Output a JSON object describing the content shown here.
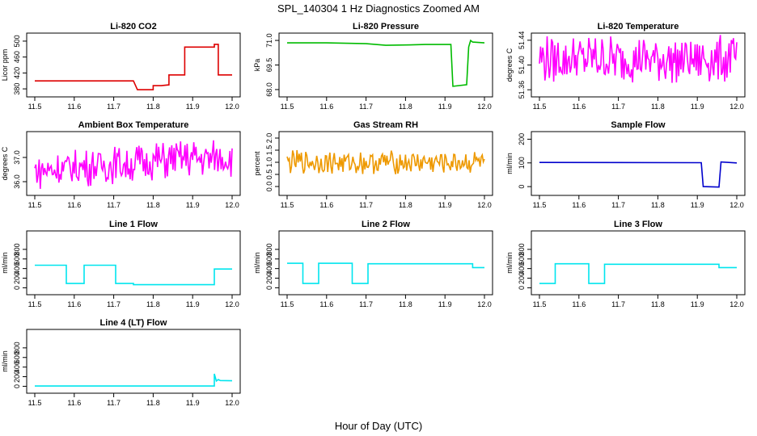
{
  "figure": {
    "title": "SPL_140304  1 Hz Diagnostics Zoomed AM",
    "xlabel": "Hour of Day (UTC)"
  },
  "chart_data": [
    {
      "type": "line",
      "title": "Li-820 CO2",
      "ylabel": "Licor ppm",
      "color": "#dd0000",
      "xlim": [
        11.5,
        12.0
      ],
      "ylim": [
        370,
        510
      ],
      "xticks": [
        "11.5",
        "11.6",
        "11.7",
        "11.8",
        "11.9",
        "12.0"
      ],
      "yticks": [
        "380",
        "420",
        "460",
        "500"
      ],
      "series": [
        {
          "x": [
            11.5,
            11.75,
            11.75,
            11.76,
            11.76,
            11.8,
            11.8,
            11.82,
            11.82,
            11.84,
            11.84,
            11.88,
            11.88,
            11.955,
            11.955,
            11.965,
            11.965,
            12.0
          ],
          "y": [
            400,
            400,
            400,
            378,
            378,
            378,
            388,
            388,
            388,
            390,
            415,
            415,
            485,
            485,
            492,
            492,
            415,
            415
          ]
        }
      ]
    },
    {
      "type": "line",
      "title": "Li-820 Pressure",
      "ylabel": "kPa",
      "color": "#00bb00",
      "xlim": [
        11.5,
        12.0
      ],
      "ylim": [
        67.8,
        71.2
      ],
      "xticks": [
        "11.5",
        "11.6",
        "11.7",
        "11.8",
        "11.9",
        "12.0"
      ],
      "yticks": [
        "68.0",
        "69.5",
        "71.0"
      ],
      "series": [
        {
          "x": [
            11.5,
            11.6,
            11.7,
            11.75,
            11.8,
            11.85,
            11.9,
            11.915,
            11.92,
            11.955,
            11.96,
            11.965,
            11.97,
            12.0
          ],
          "y": [
            70.85,
            70.85,
            70.8,
            70.7,
            70.72,
            70.75,
            70.75,
            70.75,
            68.2,
            68.3,
            70.6,
            71.0,
            70.9,
            70.85
          ]
        }
      ]
    },
    {
      "type": "line",
      "title": "Li-820 Temperature",
      "ylabel": "degrees C",
      "color": "#ff00ff",
      "xlim": [
        11.5,
        12.0
      ],
      "ylim": [
        51.355,
        51.445
      ],
      "xticks": [
        "11.5",
        "11.6",
        "11.7",
        "11.8",
        "11.9",
        "12.0"
      ],
      "yticks": [
        "51.36",
        "51.40",
        "51.44"
      ],
      "series": [
        {
          "x": [
            11.5,
            12.0
          ],
          "y": [
            51.41,
            51.41
          ],
          "band": [
            51.36,
            51.44
          ]
        }
      ]
    },
    {
      "type": "line",
      "title": "Ambient Box Temperature",
      "ylabel": "degrees C",
      "color": "#ff00ff",
      "xlim": [
        11.5,
        12.0
      ],
      "ylim": [
        35.6,
        37.9
      ],
      "xticks": [
        "11.5",
        "11.6",
        "11.7",
        "11.8",
        "11.9",
        "12.0"
      ],
      "yticks": [
        "36.0",
        "37.0"
      ],
      "series": [
        {
          "x": [
            11.5,
            11.6,
            11.7,
            11.8,
            11.9,
            12.0
          ],
          "y": [
            36.45,
            36.55,
            36.7,
            36.85,
            36.95,
            37.0
          ],
          "band": [
            36.2,
            37.8
          ]
        }
      ]
    },
    {
      "type": "line",
      "title": "Gas Stream RH",
      "ylabel": "percent",
      "color": "#ee9900",
      "xlim": [
        11.5,
        12.0
      ],
      "ylim": [
        -0.2,
        2.1
      ],
      "xticks": [
        "11.5",
        "11.6",
        "11.7",
        "11.8",
        "11.9",
        "12.0"
      ],
      "yticks": [
        "0.0",
        "0.5",
        "1.0",
        "1.5",
        "2.0"
      ],
      "series": [
        {
          "x": [
            11.5,
            12.0
          ],
          "y": [
            1.0,
            1.0
          ],
          "band": [
            0.5,
            1.5
          ]
        }
      ]
    },
    {
      "type": "line",
      "title": "Sample Flow",
      "ylabel": "ml/min",
      "color": "#0000cc",
      "xlim": [
        11.5,
        12.0
      ],
      "ylim": [
        -20,
        215
      ],
      "xticks": [
        "11.5",
        "11.6",
        "11.7",
        "11.8",
        "11.9",
        "12.0"
      ],
      "yticks": [
        "0",
        "100",
        "200"
      ],
      "series": [
        {
          "x": [
            11.5,
            11.91,
            11.915,
            11.955,
            11.96,
            12.0
          ],
          "y": [
            102,
            101,
            0,
            -2,
            104,
            100
          ]
        }
      ]
    },
    {
      "type": "line",
      "title": "Line 1 Flow",
      "ylabel": "ml/min",
      "color": "#00e5ee",
      "xlim": [
        11.5,
        12.0
      ],
      "ylim": [
        -60,
        1100
      ],
      "xticks": [
        "11.5",
        "11.6",
        "11.7",
        "11.8",
        "11.9",
        "12.0"
      ],
      "yticks": [
        "0",
        "200",
        "400",
        "600",
        "800"
      ],
      "series": [
        {
          "x": [
            11.5,
            11.58,
            11.58,
            11.625,
            11.625,
            11.705,
            11.705,
            11.75,
            11.75,
            11.955,
            11.955,
            12.0
          ],
          "y": [
            470,
            470,
            90,
            90,
            470,
            470,
            90,
            90,
            65,
            65,
            390,
            390
          ]
        }
      ]
    },
    {
      "type": "line",
      "title": "Line 2 Flow",
      "ylabel": "ml/min",
      "color": "#00e5ee",
      "xlim": [
        11.5,
        12.0
      ],
      "ylim": [
        -60,
        1100
      ],
      "xticks": [
        "11.5",
        "11.6",
        "11.7",
        "11.8",
        "11.9",
        "12.0"
      ],
      "yticks": [
        "0",
        "200",
        "400",
        "600",
        "800"
      ],
      "series": [
        {
          "x": [
            11.5,
            11.54,
            11.54,
            11.58,
            11.58,
            11.665,
            11.665,
            11.705,
            11.705,
            11.97,
            11.97,
            12.0
          ],
          "y": [
            510,
            510,
            90,
            90,
            510,
            510,
            90,
            90,
            500,
            500,
            420,
            420
          ]
        }
      ]
    },
    {
      "type": "line",
      "title": "Line 3 Flow",
      "ylabel": "ml/min",
      "color": "#00e5ee",
      "xlim": [
        11.5,
        12.0
      ],
      "ylim": [
        -60,
        1100
      ],
      "xticks": [
        "11.5",
        "11.6",
        "11.7",
        "11.8",
        "11.9",
        "12.0"
      ],
      "yticks": [
        "0",
        "200",
        "400",
        "600",
        "800"
      ],
      "series": [
        {
          "x": [
            11.5,
            11.54,
            11.54,
            11.625,
            11.625,
            11.665,
            11.665,
            11.955,
            11.955,
            12.0
          ],
          "y": [
            90,
            90,
            500,
            500,
            90,
            90,
            490,
            490,
            420,
            420
          ]
        }
      ]
    },
    {
      "type": "line",
      "title": "Line 4 (LT) Flow",
      "ylabel": "ml/min",
      "color": "#00e5ee",
      "xlim": [
        11.5,
        12.0
      ],
      "ylim": [
        -60,
        1100
      ],
      "xticks": [
        "11.5",
        "11.6",
        "11.7",
        "11.8",
        "11.9",
        "12.0"
      ],
      "yticks": [
        "0",
        "200",
        "400",
        "600",
        "800"
      ],
      "series": [
        {
          "x": [
            11.5,
            11.955,
            11.955,
            11.96,
            11.965,
            11.97,
            12.0
          ],
          "y": [
            5,
            5,
            260,
            110,
            140,
            120,
            115
          ]
        }
      ]
    }
  ]
}
